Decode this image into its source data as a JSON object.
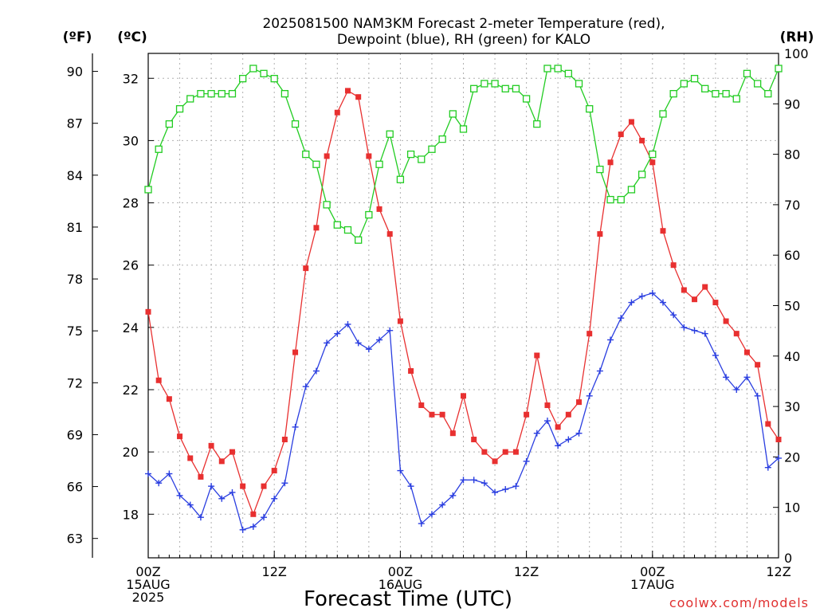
{
  "title_lines": [
    "2025081500 NAM3KM Forecast 2-meter Temperature (red),",
    "Dewpoint (blue), RH (green) for KALO"
  ],
  "credit": "coolwx.com/models",
  "chart_data": {
    "type": "line",
    "title": "2025081500 NAM3KM Forecast 2-meter Temperature (red), Dewpoint (blue), RH (green) for KALO",
    "xlabel": "Forecast Time (UTC)",
    "x_hours": [
      0,
      1,
      2,
      3,
      4,
      5,
      6,
      7,
      8,
      9,
      10,
      11,
      12,
      13,
      14,
      15,
      16,
      17,
      18,
      19,
      20,
      21,
      22,
      23,
      24,
      25,
      26,
      27,
      28,
      29,
      30,
      31,
      32,
      33,
      34,
      35,
      36,
      37,
      38,
      39,
      40,
      41,
      42,
      43,
      44,
      45,
      46,
      47,
      48,
      49,
      50,
      51,
      52,
      53,
      54,
      55,
      56,
      57,
      58,
      59,
      60
    ],
    "xlim": [
      0,
      60
    ],
    "x_ticks": [
      {
        "hour": 0,
        "lines": [
          "00Z",
          "15AUG",
          "2025"
        ]
      },
      {
        "hour": 12,
        "lines": [
          "12Z"
        ]
      },
      {
        "hour": 24,
        "lines": [
          "00Z",
          "16AUG"
        ]
      },
      {
        "hour": 36,
        "lines": [
          "12Z"
        ]
      },
      {
        "hour": 48,
        "lines": [
          "00Z",
          "17AUG"
        ]
      },
      {
        "hour": 60,
        "lines": [
          "12Z"
        ]
      }
    ],
    "x_minor_every": 3,
    "y_left_c": {
      "unit_label": "(ºC)",
      "ylim": [
        16.6,
        32.8
      ],
      "ticks": [
        18,
        20,
        22,
        24,
        26,
        28,
        30,
        32
      ]
    },
    "y_left_f": {
      "unit_label": "(ºF)",
      "ticks": [
        63,
        66,
        69,
        72,
        75,
        78,
        81,
        84,
        87,
        90
      ]
    },
    "y_right_rh": {
      "unit_label": "(RH)",
      "ylim": [
        0,
        100
      ],
      "ticks": [
        0,
        10,
        20,
        30,
        40,
        50,
        60,
        70,
        80,
        90,
        100
      ]
    },
    "grid": true,
    "series": [
      {
        "name": "Temperature",
        "color": "#e83030",
        "marker": "filled-square",
        "axis": "celsius",
        "values": [
          24.5,
          22.3,
          21.7,
          20.5,
          19.8,
          19.2,
          20.2,
          19.7,
          20.0,
          18.9,
          18.0,
          18.9,
          19.4,
          20.4,
          23.2,
          25.9,
          27.2,
          29.5,
          30.9,
          31.6,
          31.4,
          29.5,
          27.8,
          27.0,
          24.2,
          22.6,
          21.5,
          21.2,
          21.2,
          20.6,
          21.8,
          20.4,
          20.0,
          19.7,
          20.0,
          20.0,
          21.2,
          23.1,
          21.5,
          20.8,
          21.2,
          21.6,
          23.8,
          27.0,
          29.3,
          30.2,
          30.6,
          30.0,
          29.3,
          27.1,
          26.0,
          25.2,
          24.9,
          25.3,
          24.8,
          24.2,
          23.8,
          23.2,
          22.8,
          20.9,
          20.4
        ]
      },
      {
        "name": "Dewpoint",
        "color": "#2a3ee0",
        "marker": "plus",
        "axis": "celsius",
        "values": [
          19.3,
          19.0,
          19.3,
          18.6,
          18.3,
          17.9,
          18.9,
          18.5,
          18.7,
          17.5,
          17.6,
          17.9,
          18.5,
          19.0,
          20.8,
          22.1,
          22.6,
          23.5,
          23.8,
          24.1,
          23.5,
          23.3,
          23.6,
          23.9,
          19.4,
          18.9,
          17.7,
          18.0,
          18.3,
          18.6,
          19.1,
          19.1,
          19.0,
          18.7,
          18.8,
          18.9,
          19.7,
          20.6,
          21.0,
          20.2,
          20.4,
          20.6,
          21.8,
          22.6,
          23.6,
          24.3,
          24.8,
          25.0,
          25.1,
          24.8,
          24.4,
          24.0,
          23.9,
          23.8,
          23.1,
          22.4,
          22.0,
          22.4,
          21.8,
          19.5,
          19.8
        ]
      },
      {
        "name": "RH",
        "color": "#22cc22",
        "marker": "open-square",
        "axis": "rh",
        "values": [
          73,
          81,
          86,
          89,
          91,
          92,
          92,
          92,
          92,
          95,
          97,
          96,
          95,
          92,
          86,
          80,
          78,
          70,
          66,
          65,
          63,
          68,
          78,
          84,
          75,
          80,
          79,
          81,
          83,
          88,
          85,
          93,
          94,
          94,
          93,
          93,
          91,
          86,
          97,
          97,
          96,
          94,
          89,
          77,
          71,
          71,
          73,
          76,
          80,
          88,
          92,
          94,
          95,
          93,
          92,
          92,
          91,
          96,
          94,
          92,
          97
        ]
      }
    ]
  }
}
